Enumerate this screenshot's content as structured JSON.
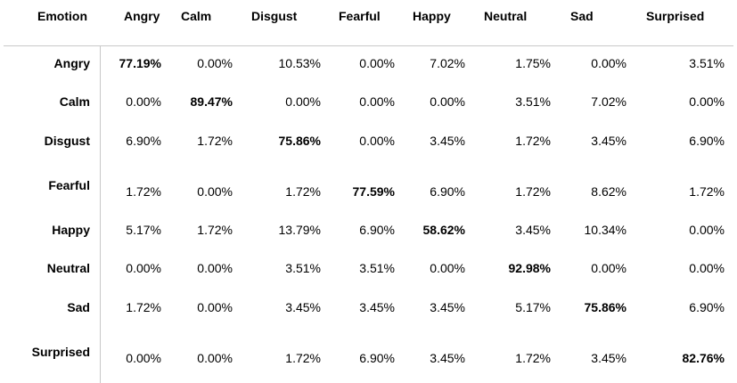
{
  "table": {
    "corner": "Emotion",
    "columns": [
      "Angry",
      "Calm",
      "Disgust",
      "Fearful",
      "Happy",
      "Neutral",
      "Sad",
      "Surprised"
    ],
    "rows": [
      {
        "label": "Angry",
        "cells": [
          "77.19%",
          "0.00%",
          "10.53%",
          "0.00%",
          "7.02%",
          "1.75%",
          "0.00%",
          "3.51%"
        ]
      },
      {
        "label": "Calm",
        "cells": [
          "0.00%",
          "89.47%",
          "0.00%",
          "0.00%",
          "0.00%",
          "3.51%",
          "7.02%",
          "0.00%"
        ]
      },
      {
        "label": "Disgust",
        "cells": [
          "6.90%",
          "1.72%",
          "75.86%",
          "0.00%",
          "3.45%",
          "1.72%",
          "3.45%",
          "6.90%"
        ]
      },
      {
        "label": "Fearful",
        "cells": [
          "1.72%",
          "0.00%",
          "1.72%",
          "77.59%",
          "6.90%",
          "1.72%",
          "8.62%",
          "1.72%"
        ]
      },
      {
        "label": "Happy",
        "cells": [
          "5.17%",
          "1.72%",
          "13.79%",
          "6.90%",
          "58.62%",
          "3.45%",
          "10.34%",
          "0.00%"
        ]
      },
      {
        "label": "Neutral",
        "cells": [
          "0.00%",
          "0.00%",
          "3.51%",
          "3.51%",
          "0.00%",
          "92.98%",
          "0.00%",
          "0.00%"
        ]
      },
      {
        "label": "Sad",
        "cells": [
          "1.72%",
          "0.00%",
          "3.45%",
          "3.45%",
          "3.45%",
          "5.17%",
          "75.86%",
          "6.90%"
        ]
      },
      {
        "label": "Surprised",
        "cells": [
          "0.00%",
          "0.00%",
          "1.72%",
          "6.90%",
          "3.45%",
          "1.72%",
          "3.45%",
          "82.76%"
        ]
      }
    ]
  }
}
